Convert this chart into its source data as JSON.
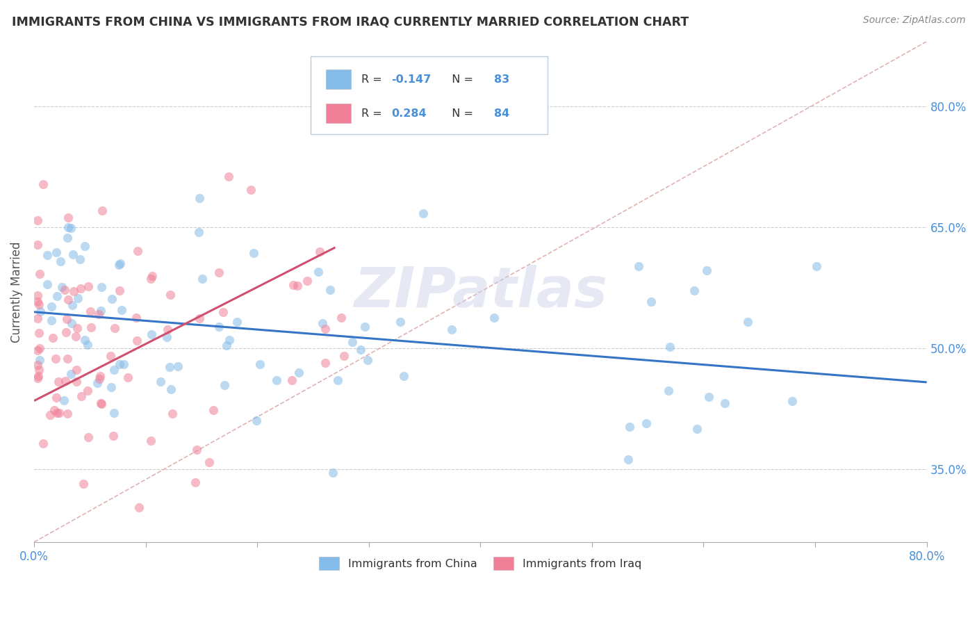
{
  "title": "IMMIGRANTS FROM CHINA VS IMMIGRANTS FROM IRAQ CURRENTLY MARRIED CORRELATION CHART",
  "source": "Source: ZipAtlas.com",
  "ylabel": "Currently Married",
  "xlim": [
    0.0,
    0.8
  ],
  "ylim": [
    0.26,
    0.88
  ],
  "china_R": -0.147,
  "china_N": 83,
  "iraq_R": 0.284,
  "iraq_N": 84,
  "china_color": "#85BBE8",
  "iraq_color": "#F08098",
  "china_line_color": "#3575C8",
  "iraq_line_color": "#D05070",
  "ref_line_color": "#DDAAAA",
  "y_tick_positions": [
    0.35,
    0.5,
    0.65,
    0.8
  ],
  "y_tick_labels": [
    "35.0%",
    "50.0%",
    "65.0%",
    "80.0%"
  ],
  "legend_label_china": "Immigrants from China",
  "legend_label_iraq": "Immigrants from Iraq",
  "watermark": "ZIPatlas",
  "china_trendline": [
    0.0,
    0.8,
    0.545,
    0.458
  ],
  "iraq_trendline": [
    0.0,
    0.27,
    0.435,
    0.625
  ],
  "ref_line": [
    0.0,
    0.8,
    0.26,
    0.88
  ]
}
